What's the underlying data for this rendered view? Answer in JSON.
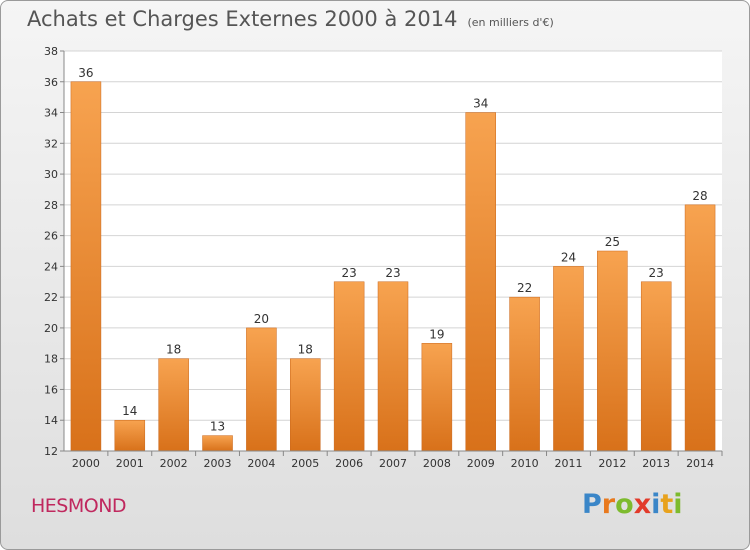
{
  "header": {
    "title": "Achats et Charges Externes 2000 à 2014",
    "subtitle": "(en milliers d'€)"
  },
  "commune": "HESMOND",
  "logo": {
    "text": "Proxiti",
    "letters": [
      {
        "ch": "P",
        "color": "#3a86c8"
      },
      {
        "ch": "r",
        "color": "#e8791d"
      },
      {
        "ch": "o",
        "color": "#7dbb2e"
      },
      {
        "ch": "x",
        "color": "#e23a2a"
      },
      {
        "ch": "i",
        "color": "#3a86c8"
      },
      {
        "ch": "t",
        "color": "#e8a21d"
      },
      {
        "ch": "i",
        "color": "#7dbb2e"
      }
    ]
  },
  "colors": {
    "bar_top": "#f7a350",
    "bar_bottom": "#d8711a",
    "bar_edge": "#c9661a",
    "grid": "#d4d4d4",
    "axis": "#888888",
    "text": "#333333"
  },
  "chart_data": {
    "type": "bar",
    "categories": [
      "2000",
      "2001",
      "2002",
      "2003",
      "2004",
      "2005",
      "2006",
      "2007",
      "2008",
      "2009",
      "2010",
      "2011",
      "2012",
      "2013",
      "2014"
    ],
    "values": [
      36,
      14,
      18,
      13,
      20,
      18,
      23,
      23,
      19,
      34,
      22,
      24,
      25,
      23,
      28
    ],
    "ylim": [
      12,
      38
    ],
    "yticks": [
      12,
      14,
      16,
      18,
      20,
      22,
      24,
      26,
      28,
      30,
      32,
      34,
      36,
      38
    ],
    "grid": true,
    "data_labels": true
  }
}
